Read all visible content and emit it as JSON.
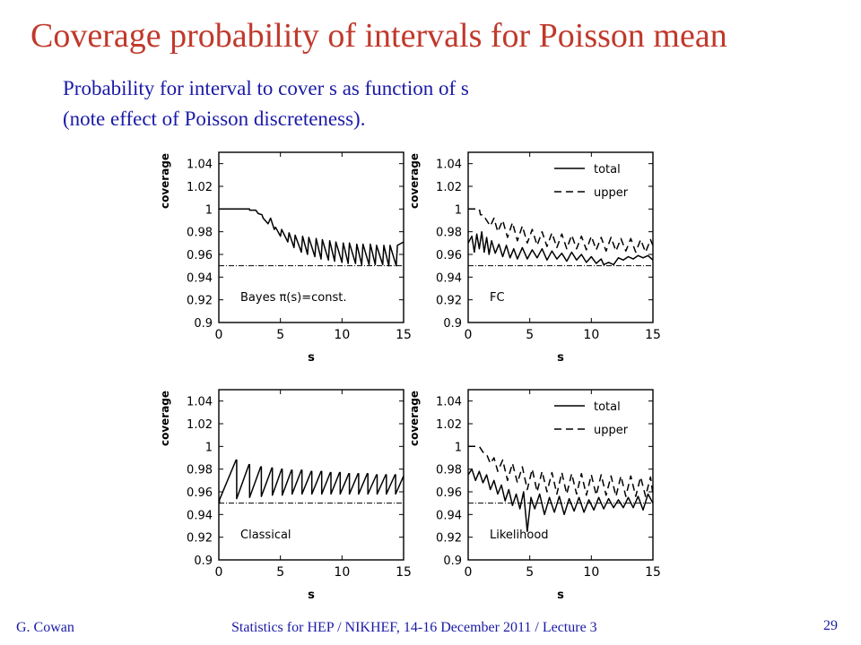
{
  "title": "Coverage probability of intervals for Poisson mean",
  "subtitle_lines": [
    "Probability for interval to cover s as function of s",
    "(note effect of Poisson discreteness)."
  ],
  "footer": {
    "author": "G. Cowan",
    "course": "Statistics for HEP / NIKHEF, 14-16 December  2011 / Lecture 3",
    "page": "29"
  },
  "colors": {
    "title": "#c0392b",
    "text": "#1a1aa6",
    "plot": "#000000"
  },
  "chart_data": [
    {
      "type": "line",
      "annotation": "Bayes π(s)=const.",
      "xlabel": "s",
      "ylabel": "coverage",
      "xlim": [
        0,
        15
      ],
      "ylim": [
        0.9,
        1.05
      ],
      "xticks": [
        "0",
        "5",
        "10",
        "15"
      ],
      "yticks": [
        "0.9",
        "0.92",
        "0.94",
        "0.96",
        "0.98",
        "1",
        "1.02",
        "1.04"
      ],
      "reference_line": 0.95,
      "legend": [],
      "series": [
        {
          "style": "solid",
          "x": [
            0,
            2.5,
            2.5,
            3.0,
            3.2,
            3.5,
            3.6,
            4.0,
            4.2,
            4.5,
            4.6,
            5.0,
            5.1,
            5.6,
            5.7,
            6.1,
            6.2,
            6.7,
            6.8,
            7.2,
            7.3,
            7.8,
            7.9,
            8.3,
            8.4,
            8.9,
            9.0,
            9.4,
            9.5,
            10.0,
            10.1,
            10.5,
            10.6,
            11.1,
            11.2,
            11.6,
            11.7,
            12.2,
            12.3,
            12.7,
            12.8,
            13.3,
            13.4,
            13.8,
            13.9,
            14.4,
            14.5,
            15.0
          ],
          "y": [
            1.0,
            1.0,
            0.999,
            0.999,
            0.996,
            0.995,
            0.992,
            0.987,
            0.992,
            0.982,
            0.984,
            0.976,
            0.982,
            0.971,
            0.979,
            0.966,
            0.977,
            0.962,
            0.976,
            0.96,
            0.975,
            0.958,
            0.974,
            0.956,
            0.973,
            0.955,
            0.972,
            0.954,
            0.971,
            0.953,
            0.97,
            0.952,
            0.97,
            0.952,
            0.969,
            0.951,
            0.969,
            0.951,
            0.969,
            0.951,
            0.968,
            0.951,
            0.968,
            0.95,
            0.968,
            0.95,
            0.968,
            0.971
          ]
        }
      ]
    },
    {
      "type": "line",
      "annotation": "FC",
      "xlabel": "s",
      "ylabel": "coverage",
      "xlim": [
        0,
        15
      ],
      "ylim": [
        0.9,
        1.05
      ],
      "xticks": [
        "0",
        "5",
        "10",
        "15"
      ],
      "yticks": [
        "0.9",
        "0.92",
        "0.94",
        "0.96",
        "0.98",
        "1",
        "1.02",
        "1.04"
      ],
      "reference_line": 0.95,
      "legend": [
        "total",
        "upper"
      ],
      "series": [
        {
          "name": "total",
          "style": "solid",
          "x": [
            0,
            0.3,
            0.5,
            0.7,
            0.9,
            1.1,
            1.3,
            1.5,
            1.7,
            1.9,
            2.2,
            2.5,
            2.8,
            3.1,
            3.4,
            3.7,
            4.0,
            4.4,
            4.8,
            5.2,
            5.6,
            6.0,
            6.4,
            6.8,
            7.2,
            7.6,
            8.0,
            8.4,
            8.8,
            9.2,
            9.6,
            10.0,
            10.4,
            10.8,
            11.0,
            11.4,
            11.8,
            12.2,
            12.6,
            13.0,
            13.4,
            13.8,
            14.2,
            14.6,
            15.0
          ],
          "y": [
            0.97,
            0.976,
            0.962,
            0.978,
            0.965,
            0.98,
            0.962,
            0.975,
            0.96,
            0.972,
            0.961,
            0.969,
            0.958,
            0.968,
            0.957,
            0.965,
            0.956,
            0.966,
            0.956,
            0.964,
            0.957,
            0.965,
            0.955,
            0.963,
            0.956,
            0.961,
            0.954,
            0.962,
            0.955,
            0.96,
            0.953,
            0.958,
            0.952,
            0.956,
            0.951,
            0.953,
            0.951,
            0.957,
            0.955,
            0.958,
            0.956,
            0.959,
            0.957,
            0.959,
            0.955
          ]
        },
        {
          "name": "upper",
          "style": "dashed",
          "x": [
            0,
            0.5,
            0.9,
            1.0,
            1.2,
            1.5,
            1.8,
            2.1,
            2.4,
            2.8,
            3.2,
            3.6,
            4.0,
            4.4,
            4.8,
            5.2,
            5.6,
            6.0,
            6.4,
            6.8,
            7.2,
            7.6,
            8.0,
            8.4,
            8.8,
            9.2,
            9.6,
            10.0,
            10.4,
            10.8,
            11.2,
            11.6,
            12.0,
            12.4,
            12.8,
            13.2,
            13.6,
            14.0,
            14.4,
            14.8,
            15.0
          ],
          "y": [
            1.0,
            1.0,
            1.0,
            0.995,
            0.995,
            0.99,
            0.985,
            0.992,
            0.98,
            0.99,
            0.975,
            0.988,
            0.972,
            0.985,
            0.97,
            0.982,
            0.968,
            0.98,
            0.967,
            0.979,
            0.966,
            0.978,
            0.965,
            0.977,
            0.965,
            0.976,
            0.964,
            0.976,
            0.964,
            0.975,
            0.963,
            0.975,
            0.963,
            0.974,
            0.963,
            0.974,
            0.962,
            0.973,
            0.962,
            0.973,
            0.968
          ]
        }
      ]
    },
    {
      "type": "line",
      "annotation": "Classical",
      "xlabel": "s",
      "ylabel": "coverage",
      "xlim": [
        0,
        15
      ],
      "ylim": [
        0.9,
        1.05
      ],
      "xticks": [
        "0",
        "5",
        "10",
        "15"
      ],
      "yticks": [
        "0.9",
        "0.92",
        "0.94",
        "0.96",
        "0.98",
        "1",
        "1.02",
        "1.04"
      ],
      "reference_line": 0.95,
      "legend": [],
      "series": [
        {
          "style": "solid",
          "x": [
            0,
            0.05,
            0.05,
            1.4,
            1.45,
            1.45,
            2.45,
            2.5,
            2.5,
            3.4,
            3.45,
            3.45,
            4.3,
            4.35,
            4.35,
            5.1,
            5.15,
            5.15,
            5.9,
            5.95,
            5.95,
            6.7,
            6.75,
            6.75,
            7.5,
            7.55,
            7.55,
            8.3,
            8.35,
            8.35,
            9.05,
            9.1,
            9.1,
            9.8,
            9.85,
            9.85,
            10.55,
            10.6,
            10.6,
            11.3,
            11.35,
            11.35,
            12.05,
            12.1,
            12.1,
            12.8,
            12.85,
            12.85,
            13.55,
            13.6,
            13.6,
            14.3,
            14.35,
            14.35,
            15.0
          ],
          "y": [
            0.95,
            0.95,
            0.953,
            0.988,
            0.988,
            0.954,
            0.984,
            0.984,
            0.955,
            0.982,
            0.982,
            0.956,
            0.981,
            0.981,
            0.957,
            0.98,
            0.98,
            0.957,
            0.979,
            0.979,
            0.958,
            0.979,
            0.979,
            0.958,
            0.978,
            0.978,
            0.958,
            0.978,
            0.978,
            0.958,
            0.977,
            0.977,
            0.958,
            0.977,
            0.977,
            0.958,
            0.976,
            0.976,
            0.958,
            0.976,
            0.976,
            0.958,
            0.976,
            0.976,
            0.958,
            0.975,
            0.975,
            0.958,
            0.975,
            0.975,
            0.958,
            0.975,
            0.975,
            0.958,
            0.974
          ]
        }
      ]
    },
    {
      "type": "line",
      "annotation": "Likelihood",
      "xlabel": "s",
      "ylabel": "coverage",
      "xlim": [
        0,
        15
      ],
      "ylim": [
        0.9,
        1.05
      ],
      "xticks": [
        "0",
        "5",
        "10",
        "15"
      ],
      "yticks": [
        "0.9",
        "0.92",
        "0.94",
        "0.96",
        "0.98",
        "1",
        "1.02",
        "1.04"
      ],
      "reference_line": 0.95,
      "legend": [
        "total",
        "upper"
      ],
      "series": [
        {
          "name": "total",
          "style": "solid",
          "x": [
            0,
            0.3,
            0.6,
            0.9,
            1.2,
            1.5,
            1.8,
            2.1,
            2.4,
            2.7,
            3.0,
            3.3,
            3.6,
            3.9,
            4.2,
            4.5,
            4.8,
            5.1,
            5.4,
            5.8,
            6.2,
            6.6,
            7.0,
            7.4,
            7.8,
            8.2,
            8.6,
            9.0,
            9.4,
            9.8,
            10.2,
            10.6,
            11.0,
            11.4,
            11.8,
            12.2,
            12.6,
            13.0,
            13.4,
            13.8,
            14.2,
            14.6,
            15.0
          ],
          "y": [
            0.975,
            0.98,
            0.97,
            0.978,
            0.968,
            0.975,
            0.962,
            0.97,
            0.958,
            0.966,
            0.952,
            0.962,
            0.948,
            0.958,
            0.945,
            0.96,
            0.925,
            0.955,
            0.945,
            0.958,
            0.94,
            0.955,
            0.942,
            0.956,
            0.94,
            0.954,
            0.943,
            0.955,
            0.942,
            0.953,
            0.944,
            0.955,
            0.945,
            0.954,
            0.946,
            0.953,
            0.946,
            0.955,
            0.946,
            0.956,
            0.944,
            0.958,
            0.95
          ]
        },
        {
          "name": "upper",
          "style": "dashed",
          "x": [
            0,
            0.5,
            0.9,
            1.2,
            1.5,
            1.8,
            2.1,
            2.4,
            2.8,
            3.2,
            3.6,
            4.0,
            4.4,
            4.8,
            5.2,
            5.6,
            6.0,
            6.4,
            6.8,
            7.2,
            7.6,
            8.0,
            8.4,
            8.8,
            9.2,
            9.6,
            10.0,
            10.4,
            10.8,
            11.2,
            11.6,
            12.0,
            12.4,
            12.8,
            13.2,
            13.6,
            14.0,
            14.4,
            14.8,
            15.0
          ],
          "y": [
            1.0,
            1.0,
            1.0,
            0.995,
            0.993,
            0.985,
            0.99,
            0.978,
            0.988,
            0.97,
            0.985,
            0.968,
            0.982,
            0.962,
            0.98,
            0.96,
            0.978,
            0.96,
            0.977,
            0.958,
            0.977,
            0.958,
            0.976,
            0.958,
            0.976,
            0.957,
            0.975,
            0.957,
            0.975,
            0.957,
            0.974,
            0.956,
            0.974,
            0.956,
            0.974,
            0.956,
            0.973,
            0.956,
            0.973,
            0.958
          ]
        }
      ]
    }
  ]
}
